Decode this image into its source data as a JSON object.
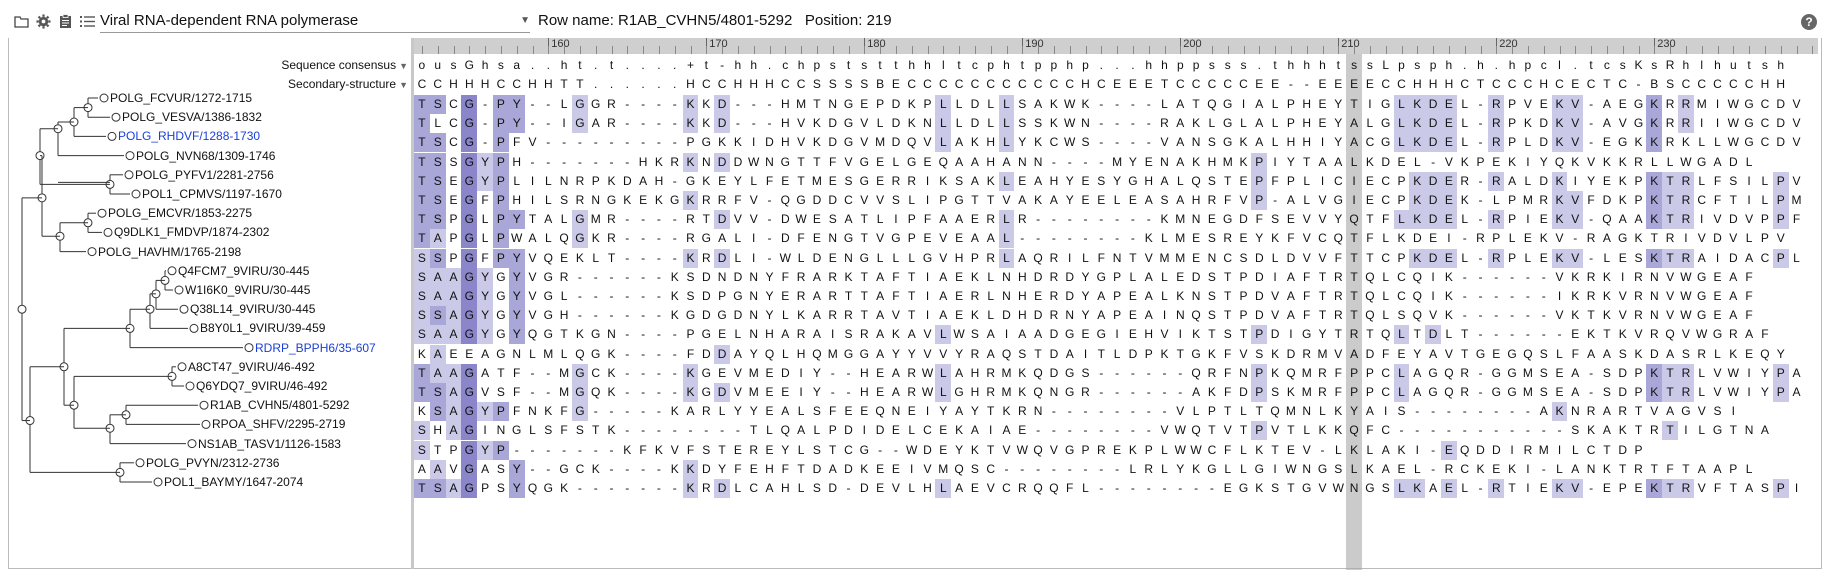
{
  "toolbar": {
    "icons": [
      "folder-icon",
      "gear-icon",
      "clipboard-icon",
      "list-icon"
    ],
    "family_name": "Viral RNA-dependent RNA polymerase",
    "row_name_label": "Row name:",
    "row_name": "R1AB_CVHN5/4801-5292",
    "position_label": "Position:",
    "position": "219",
    "help": "?"
  },
  "ruler": {
    "numbers": [
      "160",
      "170",
      "180",
      "190",
      "200",
      "210",
      "220",
      "230"
    ]
  },
  "headers": {
    "consensus_label": "Sequence consensus",
    "structure_label": "Secondary-structure",
    "consensus": "ousGhsa..ht.t....+t-hh.chpststthhltcphtpphp...hhppsss.thhhtssLpsph.h.hpcl.tcsKsRhlhutsh",
    "structure": "CCHHHCCHHTT......HCCHHHCCSSSSBECCCCCCCCCCCHCEEETCCCCCEE--EEEECCHHHCTCCCHCECTC-BSCCCCCHH"
  },
  "highlight": {
    "column_index": 59
  },
  "rows": [
    {
      "name": "POLG_FCVUR/1272-1715",
      "seq": "TSCG-PY--LGGR----KKD---HMTNGEPDKPLLDLLSAKWK----LATQGIALPHEYTIGLKDEL-RPVEKV-AEGKRRMIWGCDV",
      "hl": "...#.#...........###...............#..#...........................####.#.#...#....##..##...."
    },
    {
      "name": "POLG_VESVA/1386-1832",
      "seq": "TLCG-PY--IGAR----KKD---HVKDGVLDKNLLDLLSSKWN----RAKLGLALPHEYALGLKDEL-RPKDKV-AVGKRRIIWGCDV",
      "hl": ""
    },
    {
      "name": "POLG_RHDVF/1288-1730",
      "seq": "TSCG-PFV---------PGKKIDHVKDGVMDQVLAKHLYKCWS----VANSGKALHHIYACGLKDEL-RPLDKV-EGKKRKLLWGCDV",
      "hl": ""
    },
    {
      "name": "POLG_NVN68/1309-1746",
      "seq": "TSSGYPH-------HKRKNDDWNGTTFVGELGEQAAHANN----MYENAKHMKPIYTAALKDEL-VKPEKIYQKVKKRLLWGADL",
      "hl": ""
    },
    {
      "name": "POLG_PYFV1/2281-2756",
      "seq": "TSEGYPLILNRPKDAH-GKEYLFETMESGERRIKSAKLEAHYESYGHALQSTEPFPLICIECPKDER-RALDKIYEKPKTRLFSILPV",
      "hl": ""
    },
    {
      "name": "POL1_CPMVS/1197-1670",
      "seq": "TSEGFPHILSRNGKEKGKRRFV-QGDDCVVSLIPGTTVAKAYEELEASAHRFVP-ALVGIECPKDEK-LPMRKVFDKPKTRCFTILPM",
      "hl": ""
    },
    {
      "name": "POLG_EMCVR/1853-2275",
      "seq": "TSPGLPYTALGMR----RTDVV-DWESATLIPFAAERLR--------KMNEGDFSEVVYQTFLKDEL-RPIEKV-QAAKTRIVDVPPF",
      "hl": ""
    },
    {
      "name": "Q9DLK1_FMDVP/1874-2302",
      "seq": "TAPGLPWALQGKR----RGALI-DFENGTVGPEVEAAL--------KLMESREYKFVCQTFLKDEI-RPLEKV-RAGKTRIVDVLPV",
      "hl": ""
    },
    {
      "name": "POLG_HAVHM/1765-2198",
      "seq": "SSPGFPYVQEKLT----KRDLI-WLDENGLLLGVHPRLAQRILFNTVMMENCSDLDVVFTTCPKDEL-RPLEKV-LESKTRAIDACPL",
      "hl": ""
    },
    {
      "name": "Q4FCM7_9VIRU/30-445",
      "seq": "SAAGYGYVGR------KSDNDNYFRARKTAFTIAEKLNHDRDYGPLALEDSTPDIAFTRTQLCQIK------VKRKIRNVWGEAF",
      "hl": ""
    },
    {
      "name": "W1I6K0_9VIRU/30-445",
      "seq": "SAAGYGYVGL------KSDPGNYERARTTAFTIAERLNHERDYAPEALKNSTPDVAFTRTQLCQIK------IKRKVRNVWGEAF",
      "hl": ""
    },
    {
      "name": "Q38L14_9VIRU/30-445",
      "seq": "SSAGYGYVGH------KGDGDNYLKARRTAVTIAEKLDHDRNYAPEAINQSTPDVAFTRTQLSQVK------VKTKVRNVWGEAF",
      "hl": ""
    },
    {
      "name": "B8Y0L1_9VIRU/39-459",
      "seq": "SAAGYGYQGTKGN----PGELNHARAISRAKAVLWSAIAADGEGIEHVIKTSTPDIGYTRTQLTDLT------EKTKVRQVWGRAF",
      "hl": ""
    },
    {
      "name": "RDRP_BPPH6/35-607",
      "seq": "KAEEAGNLMLQGK----FDDAYQLHQMGGAYYVVYRAQSTDAITLDPKTGKFVSKDRMVADFEYAVTGEGQSLFAASKDASRLKEQY",
      "hl": ""
    },
    {
      "name": "A8CT47_9VIRU/46-492",
      "seq": "TAAGATF--MGCK----KGEVMEDIY--HEARWLAHRMKQDGS------QRFNPKQMRFPPCLAGQR-GGMSEA-SDPKTRLVWIYPA",
      "hl": ""
    },
    {
      "name": "Q6YDQ7_9VIRU/46-492",
      "seq": "TSAGVSF--MGQK----KGDVMEEIY--HEARWLGHRMKQNGR------AKFDPSKMRFPPCLAGQR-GGMSEA-SDPKTRLVWIYPA",
      "hl": ""
    },
    {
      "name": "R1AB_CVHN5/4801-5292",
      "seq": "KSAGYPFNKFG-----KARLYYEALSFEEQNEIYAYTKRN--------VLPTLTQMNLKYAIS--------AKNRARTVAGVSI",
      "hl": ""
    },
    {
      "name": "RPOA_SHFV/2295-2719",
      "seq": "SHAGINGLSFSTK--------TLQALPDIDELCEKAIAE--------VWQTVTPVTLKKQFC-----------SKAKTRTILGTNA",
      "hl": ""
    },
    {
      "name": "NS1AB_TASV1/1126-1583",
      "seq": "STPGYP-------KFKVFSTEREYLSTCG--WDEYKTVWQVGPREKPLWWCFLKTEV-LKLAKI-EQDDIRMILCTDP",
      "hl": ""
    },
    {
      "name": "POLG_PVYN/2312-2736",
      "seq": "AAVGASY--GCK----KKDYFEHFTDADKEEIVMQSC--------LRLYKGLLGIWNGSLKAEL-RCKEKI-LANKTRTFTAAPL",
      "hl": ""
    },
    {
      "name": "POL1_BAYMY/1647-2074",
      "seq": "TSAGPSYQGK-------KRDLCAHLSD-DEVLHLAEVCRQQFL--------EGKSTGVWNGSLKAEL-RTIEKV-EPEKTRVFTASPI",
      "hl": ""
    }
  ]
}
